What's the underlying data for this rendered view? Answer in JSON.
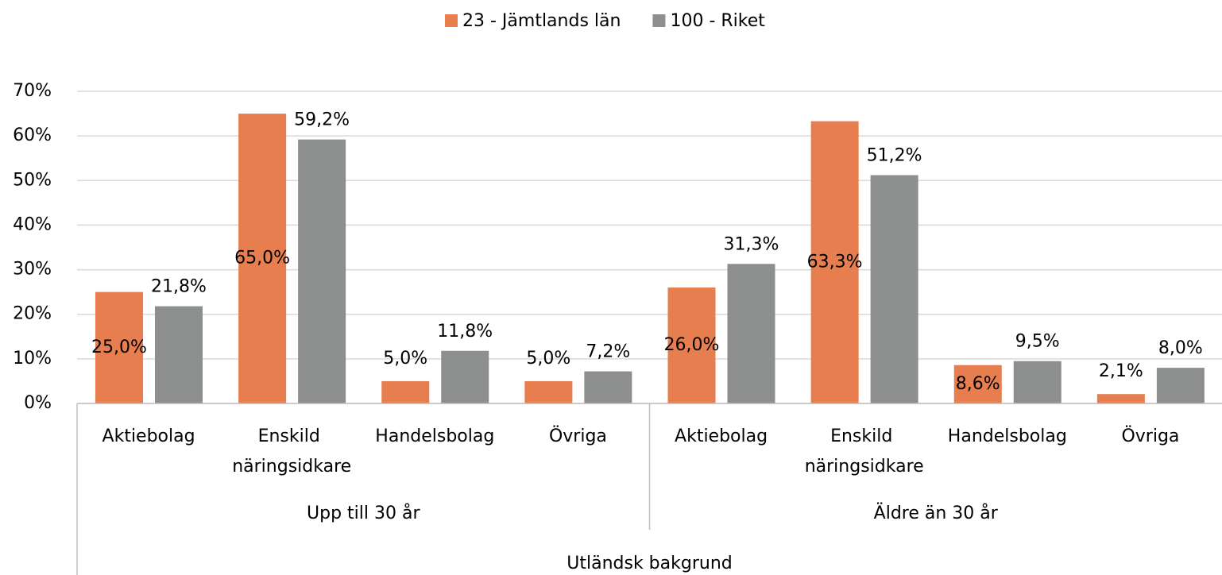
{
  "chart_data": {
    "type": "bar",
    "categories": [
      "Aktiebolag",
      "Enskild näringsidkare",
      "Handelsbolag",
      "Övriga",
      "Aktiebolag",
      "Enskild näringsidkare",
      "Handelsbolag",
      "Övriga"
    ],
    "category_groups": [
      "Upp till 30 år",
      "Äldre än 30 år"
    ],
    "outer_category": "Utländsk bakgrund",
    "series": [
      {
        "name": "23 - Jämtlands län",
        "color": "#e67e4f",
        "values": [
          25.0,
          65.0,
          5.0,
          5.0,
          26.0,
          63.3,
          8.6,
          2.1
        ],
        "value_labels": [
          "25,0%",
          "65,0%",
          "5,0%",
          "5,0%",
          "26,0%",
          "63,3%",
          "8,6%",
          "2,1%"
        ]
      },
      {
        "name": "100 - Riket",
        "color": "#8c8f8d",
        "values": [
          21.8,
          59.2,
          11.8,
          7.2,
          31.3,
          51.2,
          9.5,
          8.0
        ],
        "value_labels": [
          "21,8%",
          "59,2%",
          "11,8%",
          "7,2%",
          "31,3%",
          "51,2%",
          "9,5%",
          "8,0%"
        ]
      }
    ],
    "ylim": [
      0,
      70
    ],
    "yticks": [
      {
        "value": 0,
        "label": "0%"
      },
      {
        "value": 10,
        "label": "10%"
      },
      {
        "value": 20,
        "label": "20%"
      },
      {
        "value": 30,
        "label": "30%"
      },
      {
        "value": 40,
        "label": "40%"
      },
      {
        "value": 50,
        "label": "50%"
      },
      {
        "value": 60,
        "label": "60%"
      },
      {
        "value": 70,
        "label": "70%"
      }
    ],
    "grid": true,
    "legend": "top"
  }
}
